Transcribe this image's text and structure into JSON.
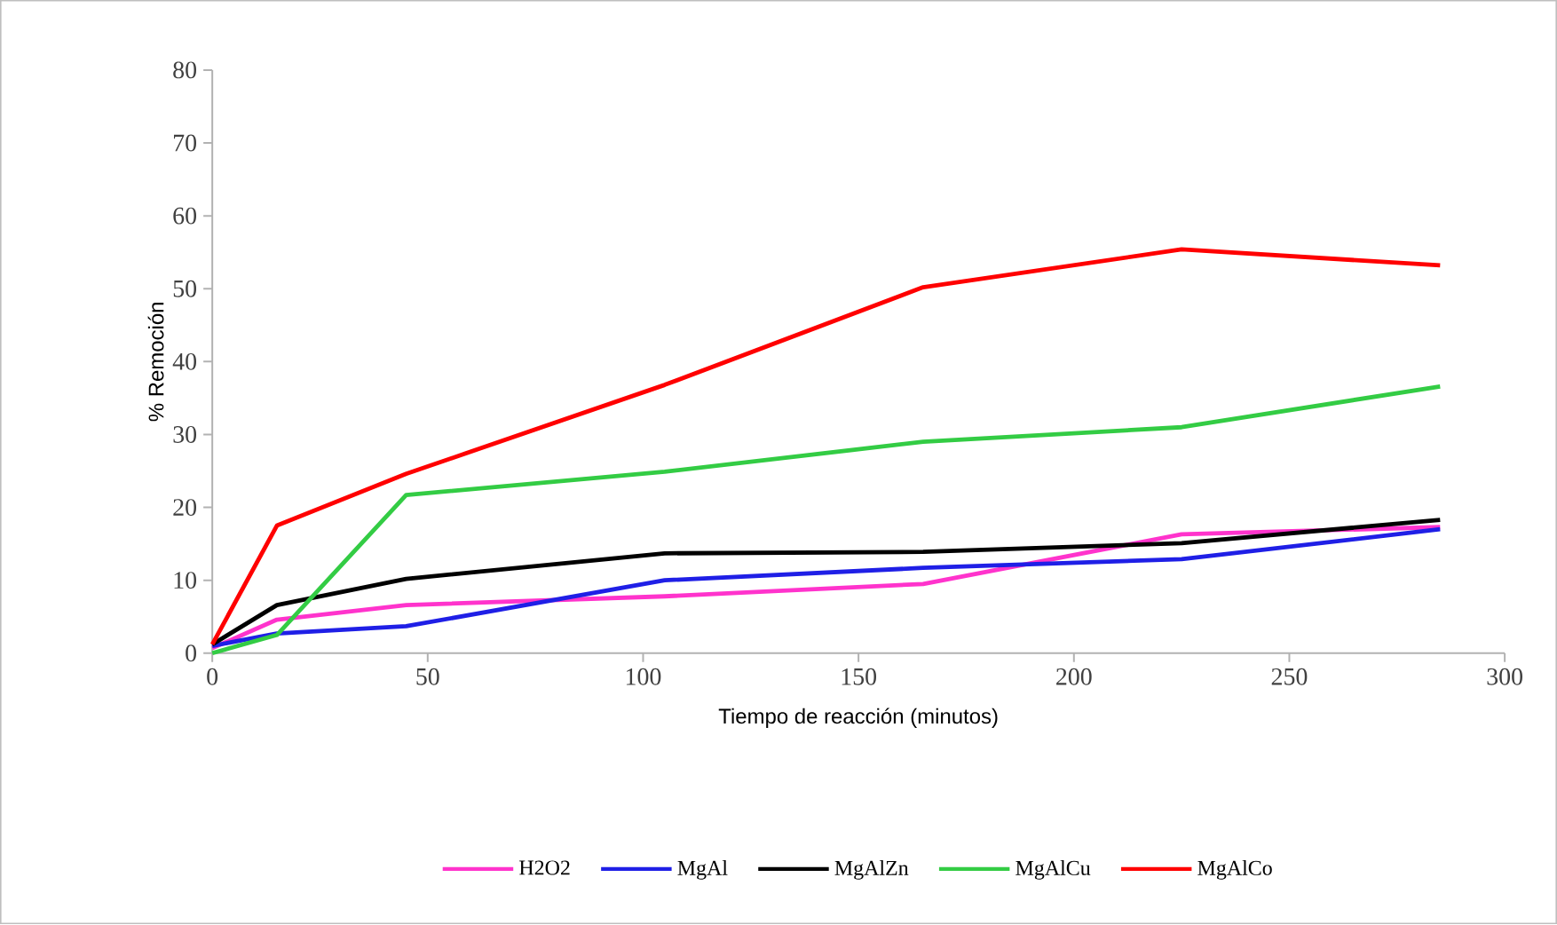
{
  "chart_data": {
    "type": "line",
    "xlabel": "Tiempo de reacción (minutos)",
    "ylabel": "% Remoción",
    "x": [
      0,
      15,
      45,
      105,
      165,
      225,
      285
    ],
    "xlim": [
      0,
      300
    ],
    "xticks": [
      0,
      50,
      100,
      150,
      200,
      250,
      300
    ],
    "ylim": [
      0,
      80
    ],
    "yticks": [
      0,
      10,
      20,
      30,
      40,
      50,
      60,
      70,
      80
    ],
    "grid": false,
    "legend": "bottom",
    "marker": "none",
    "line_style": "solid",
    "series": [
      {
        "name": "H2O2",
        "color": "#ff33cc",
        "values": [
          0.7,
          4.6,
          6.6,
          7.8,
          9.5,
          16.3,
          17.3
        ]
      },
      {
        "name": "MgAl",
        "color": "#1f1fe6",
        "values": [
          1.0,
          2.7,
          3.7,
          10.0,
          11.7,
          12.9,
          17.0
        ]
      },
      {
        "name": "MgAlZn",
        "color": "#000000",
        "values": [
          1.2,
          6.6,
          10.2,
          13.7,
          13.9,
          15.1,
          18.3
        ]
      },
      {
        "name": "MgAlCu",
        "color": "#33cc44",
        "values": [
          0.0,
          2.5,
          21.7,
          24.9,
          29.0,
          31.0,
          36.6
        ]
      },
      {
        "name": "MgAlCo",
        "color": "#ff0000",
        "values": [
          1.2,
          17.5,
          24.6,
          36.8,
          50.2,
          55.4,
          53.2
        ]
      }
    ]
  }
}
